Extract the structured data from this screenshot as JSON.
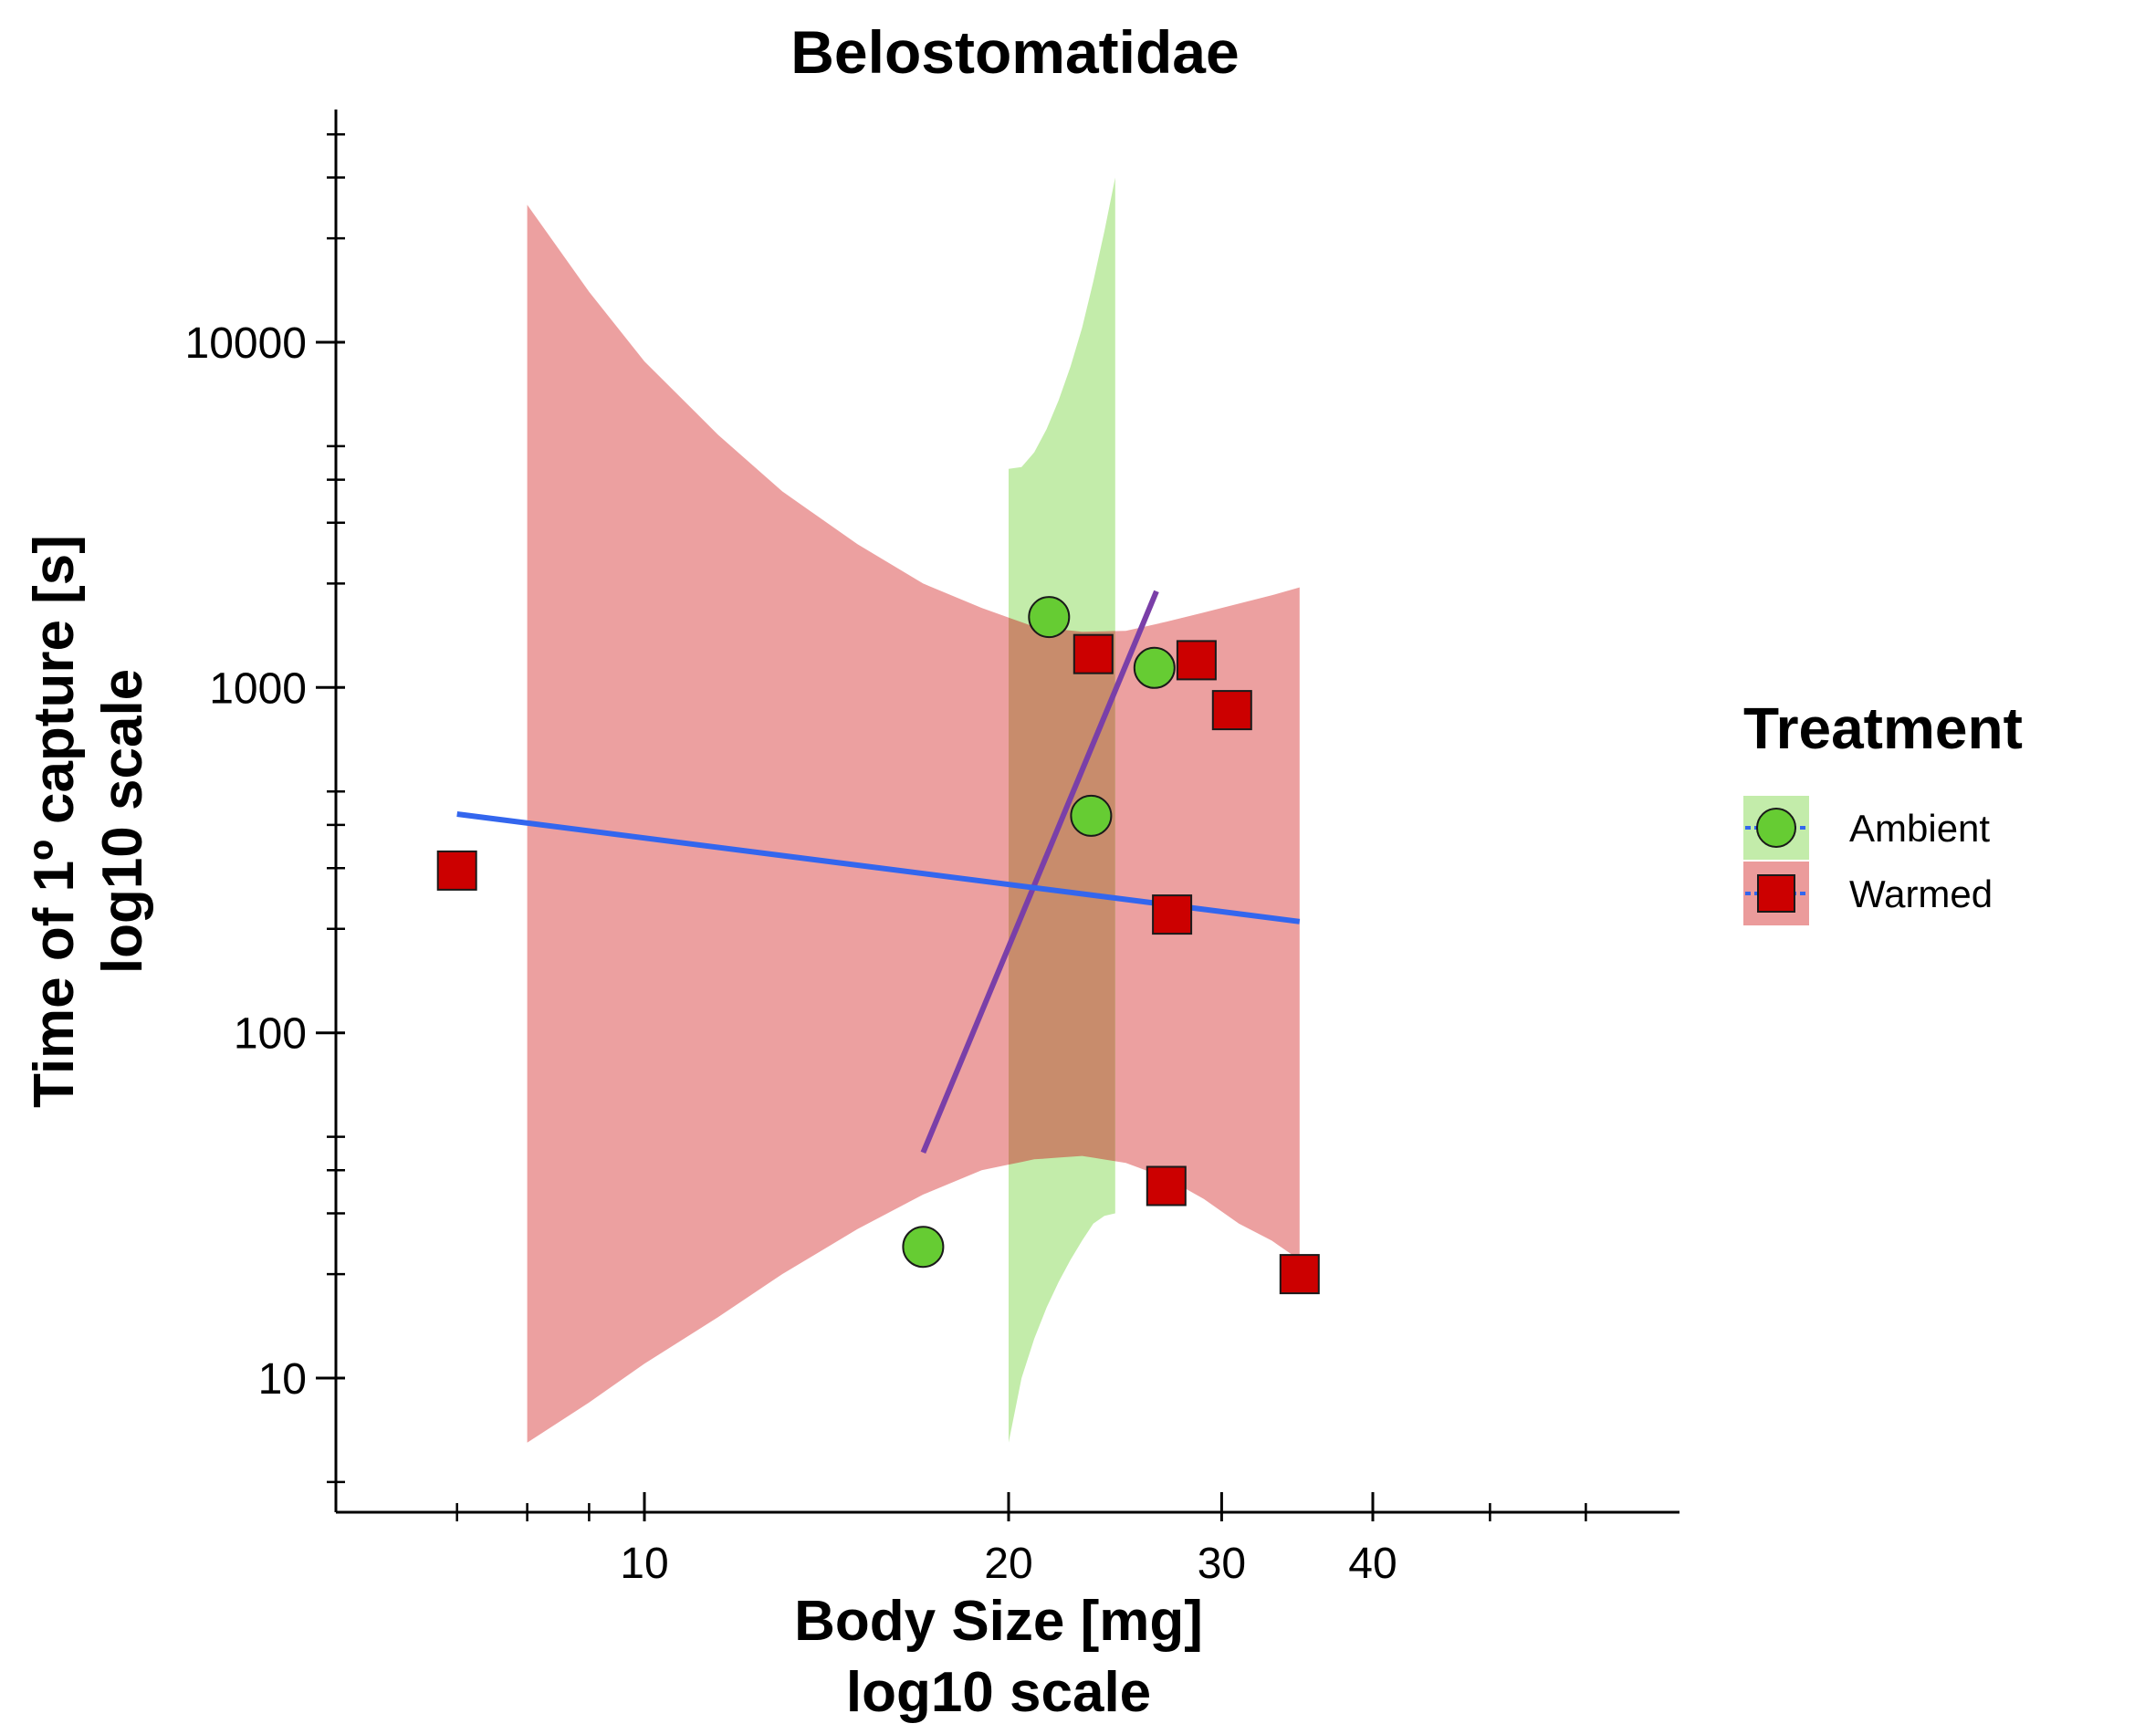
{
  "chart_data": {
    "type": "scatter",
    "title": "Belostomatidae",
    "xlabel": [
      "Body Size [mg]",
      "log10 scale"
    ],
    "ylabel": [
      "Time of 1º capture [s]",
      "log10 scale"
    ],
    "x_scale": "log10",
    "y_scale": "log10",
    "xlim": [
      6.7,
      60
    ],
    "ylim": [
      4.2,
      50000
    ],
    "x_ticks": [
      10,
      20,
      30,
      40
    ],
    "x_tick_labels": [
      "10",
      "20",
      "30",
      "40"
    ],
    "y_ticks": [
      10,
      100,
      1000,
      10000
    ],
    "y_tick_labels": [
      "10",
      "100",
      "1000",
      "10000"
    ],
    "grid": false,
    "legend": {
      "title": "Treatment",
      "placement": "right",
      "entries": [
        "Ambient",
        "Warmed"
      ]
    },
    "series": [
      {
        "name": "Ambient",
        "marker": "circle",
        "color": "#66cc33",
        "ribbon_color": "#c3ecaa",
        "line_color": "#7a3fa8",
        "points": [
          {
            "x": 17.0,
            "y": 24
          },
          {
            "x": 21.6,
            "y": 1600
          },
          {
            "x": 23.4,
            "y": 425
          },
          {
            "x": 26.4,
            "y": 1140
          }
        ],
        "fit": [
          {
            "x": 17.0,
            "y": 45
          },
          {
            "x": 26.5,
            "y": 1900
          }
        ],
        "ribbon": [
          {
            "x": 20.0,
            "lo": 6.5,
            "hi": 4300
          },
          {
            "x": 20.5,
            "lo": 10,
            "hi": 4350
          },
          {
            "x": 21.0,
            "lo": 13,
            "hi": 4800
          },
          {
            "x": 21.5,
            "lo": 16,
            "hi": 5600
          },
          {
            "x": 22.0,
            "lo": 19,
            "hi": 6800
          },
          {
            "x": 22.5,
            "lo": 22,
            "hi": 8500
          },
          {
            "x": 23.0,
            "lo": 25,
            "hi": 11000
          },
          {
            "x": 23.5,
            "lo": 28,
            "hi": 15000
          },
          {
            "x": 24.0,
            "lo": 29.5,
            "hi": 21000
          },
          {
            "x": 24.5,
            "lo": 30,
            "hi": 30000
          }
        ]
      },
      {
        "name": "Warmed",
        "marker": "square",
        "color": "#cc0000",
        "ribbon_color": "#eb9b9b",
        "line_color": "#3366ee",
        "points": [
          {
            "x": 7.0,
            "y": 295
          },
          {
            "x": 23.5,
            "y": 1250
          },
          {
            "x": 27.0,
            "y": 36
          },
          {
            "x": 27.3,
            "y": 220
          },
          {
            "x": 28.6,
            "y": 1200
          },
          {
            "x": 30.6,
            "y": 860
          },
          {
            "x": 34.8,
            "y": 20
          }
        ],
        "fit": [
          {
            "x": 7.0,
            "y": 430
          },
          {
            "x": 34.8,
            "y": 210
          }
        ],
        "ribbon": [
          {
            "x": 8.0,
            "lo": 6.5,
            "hi": 25000
          },
          {
            "x": 9.0,
            "lo": 8.5,
            "hi": 14000
          },
          {
            "x": 10.0,
            "lo": 11,
            "hi": 8800
          },
          {
            "x": 11.5,
            "lo": 15,
            "hi": 5400
          },
          {
            "x": 13.0,
            "lo": 20,
            "hi": 3700
          },
          {
            "x": 15.0,
            "lo": 27,
            "hi": 2600
          },
          {
            "x": 17.0,
            "lo": 34,
            "hi": 2000
          },
          {
            "x": 19.0,
            "lo": 40,
            "hi": 1700
          },
          {
            "x": 21.0,
            "lo": 43,
            "hi": 1500
          },
          {
            "x": 23.0,
            "lo": 44,
            "hi": 1450
          },
          {
            "x": 25.0,
            "lo": 42,
            "hi": 1460
          },
          {
            "x": 27.0,
            "lo": 38,
            "hi": 1550
          },
          {
            "x": 29.0,
            "lo": 33,
            "hi": 1650
          },
          {
            "x": 31.0,
            "lo": 28,
            "hi": 1750
          },
          {
            "x": 33.0,
            "lo": 25,
            "hi": 1850
          },
          {
            "x": 34.8,
            "lo": 22,
            "hi": 1950
          }
        ]
      }
    ]
  }
}
